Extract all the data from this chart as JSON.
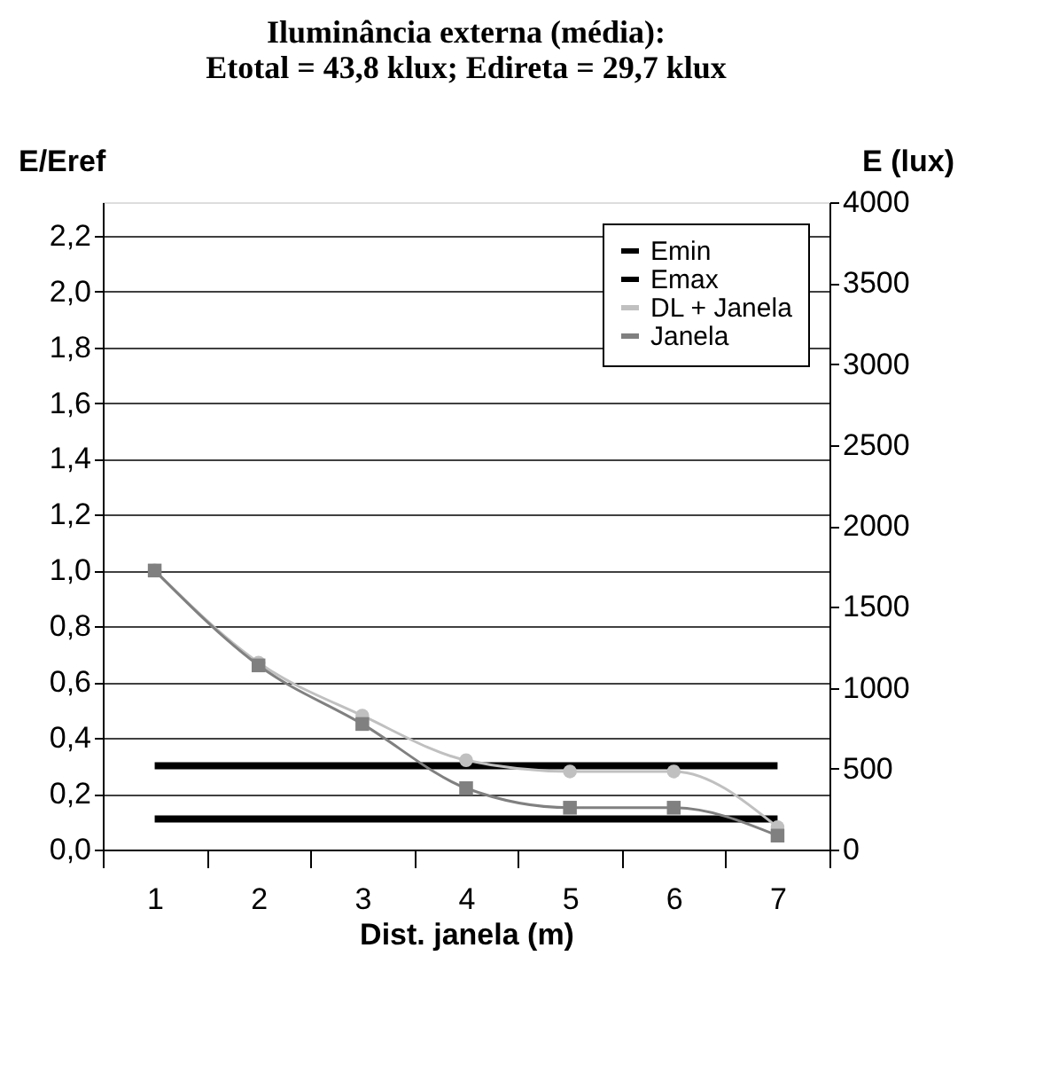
{
  "chart_data": {
    "type": "line",
    "title": "Iluminância externa (média):\nEtotal = 43,8 klux; Edireta = 29,7 klux",
    "xlabel": "Dist. janela (m)",
    "ylabel": "E/Eref",
    "y2label": "E (lux)",
    "categories": [
      "1",
      "2",
      "3",
      "4",
      "5",
      "6",
      "7"
    ],
    "series": [
      {
        "name": "Emin",
        "color": "#000000",
        "marker": "none",
        "values": [
          0.11,
          0.11,
          0.11,
          0.11,
          0.11,
          0.11,
          0.11
        ]
      },
      {
        "name": "Emax",
        "color": "#000000",
        "marker": "none",
        "values": [
          0.3,
          0.3,
          0.3,
          0.3,
          0.3,
          0.3,
          0.3
        ]
      },
      {
        "name": "DL + Janela",
        "color": "#c0c0c0",
        "marker": "circle",
        "values": [
          1.0,
          0.67,
          0.48,
          0.32,
          0.28,
          0.28,
          0.08
        ]
      },
      {
        "name": "Janela",
        "color": "#808080",
        "marker": "square",
        "values": [
          1.0,
          0.66,
          0.45,
          0.22,
          0.15,
          0.15,
          0.05
        ]
      }
    ],
    "ylim": [
      0,
      2.32
    ],
    "yticks": [
      {
        "value": 0,
        "label": "0,0"
      },
      {
        "value": 0.2,
        "label": "0,2"
      },
      {
        "value": 0.4,
        "label": "0,4"
      },
      {
        "value": 0.6,
        "label": "0,6"
      },
      {
        "value": 0.8,
        "label": "0,8"
      },
      {
        "value": 1.0,
        "label": "1,0"
      },
      {
        "value": 1.2,
        "label": "1,2"
      },
      {
        "value": 1.4,
        "label": "1,4"
      },
      {
        "value": 1.6,
        "label": "1,6"
      },
      {
        "value": 1.8,
        "label": "1,8"
      },
      {
        "value": 2.0,
        "label": "2,0"
      },
      {
        "value": 2.2,
        "label": "2,2"
      }
    ],
    "y2lim": [
      0,
      4000
    ],
    "y2ticks": [
      0,
      500,
      1000,
      1500,
      2000,
      2500,
      3000,
      3500,
      4000
    ],
    "grid": "y",
    "legend": "top right",
    "line_style": "solid"
  }
}
